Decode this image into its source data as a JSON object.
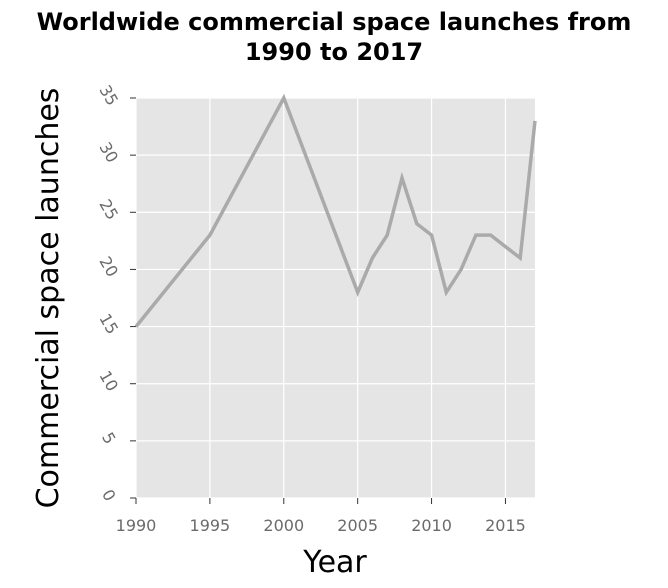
{
  "chart_data": {
    "type": "line",
    "title_line1": "Worldwide commercial space launches from",
    "title_line2": "1990 to 2017",
    "xlabel": "Year",
    "ylabel": "Commercial space launches",
    "xlim": [
      1990,
      2017
    ],
    "ylim": [
      0,
      35
    ],
    "xticks": [
      1990,
      1995,
      2000,
      2005,
      2010,
      2015
    ],
    "yticks": [
      0,
      5,
      10,
      15,
      20,
      25,
      30,
      35
    ],
    "grid": true,
    "colors": {
      "panel": "#e5e5e5",
      "grid": "#ffffff",
      "line": "#aaaaaa",
      "tick": "#6b6b6b"
    },
    "series": [
      {
        "x": [
          1990,
          1995,
          2000,
          2005,
          2006,
          2007,
          2008,
          2009,
          2010,
          2011,
          2012,
          2013,
          2014,
          2015,
          2016,
          2017
        ],
        "y": [
          15,
          23,
          35,
          18,
          21,
          23,
          28,
          24,
          23,
          18,
          20,
          23,
          23,
          22,
          21,
          33
        ]
      }
    ]
  }
}
